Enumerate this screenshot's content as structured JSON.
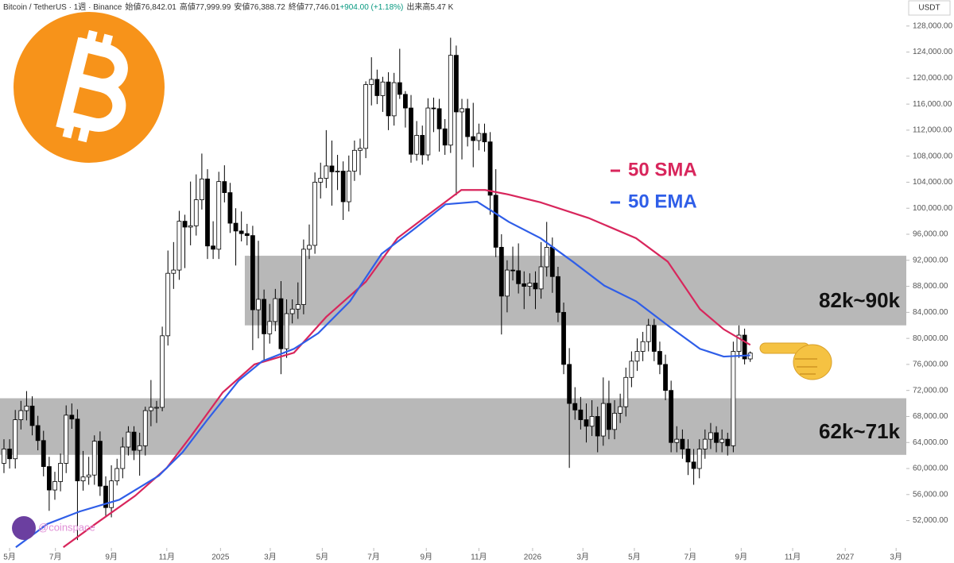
{
  "chart_data": {
    "type": "candlestick",
    "header": {
      "symbol": "Bitcoin / TetherUS · 1週 · Binance",
      "stats": [
        {
          "label": "始値",
          "value": "76,842.01"
        },
        {
          "label": "高値",
          "value": "77,999.99"
        },
        {
          "label": "安値",
          "value": "76,388.72"
        },
        {
          "label": "終値",
          "value": "77,746.01"
        },
        {
          "label": "",
          "value": "+904.00 (+1.18%)"
        },
        {
          "label": "出来高",
          "value": "5.47 K"
        }
      ]
    },
    "currency": "USDT",
    "watermark": "@coinspace",
    "up_color": "#ffffff",
    "down_color": "#000000",
    "ylim": [
      47800,
      132000
    ],
    "yticks": [
      {
        "value": 52000,
        "label": "52,000.00"
      },
      {
        "value": 56000,
        "label": "56,000.00"
      },
      {
        "value": 60000,
        "label": "60,000.00"
      },
      {
        "value": 64000,
        "label": "64,000.00"
      },
      {
        "value": 68000,
        "label": "68,000.00"
      },
      {
        "value": 72000,
        "label": "72,000.00"
      },
      {
        "value": 76000,
        "label": "76,000.00"
      },
      {
        "value": 80000,
        "label": "80,000.00"
      },
      {
        "value": 84000,
        "label": "84,000.00"
      },
      {
        "value": 88000,
        "label": "88,000.00"
      },
      {
        "value": 92000,
        "label": "92,000.00"
      },
      {
        "value": 96000,
        "label": "96,000.00"
      },
      {
        "value": 100000,
        "label": "100,000.00"
      },
      {
        "value": 104000,
        "label": "104,000.00"
      },
      {
        "value": 108000,
        "label": "108,000.00"
      },
      {
        "value": 112000,
        "label": "112,000.00"
      },
      {
        "value": 116000,
        "label": "116,000.00"
      },
      {
        "value": 120000,
        "label": "120,000.00"
      },
      {
        "value": 124000,
        "label": "124,000.00"
      },
      {
        "value": 128000,
        "label": "128,000.00"
      }
    ],
    "xlim": [
      -0.7,
      159.6
    ],
    "xticks": [
      {
        "value": 1.0,
        "label": "5月"
      },
      {
        "value": 9.1,
        "label": "7月"
      },
      {
        "value": 19.0,
        "label": "9月"
      },
      {
        "value": 28.8,
        "label": "11月"
      },
      {
        "value": 38.3,
        "label": "2025"
      },
      {
        "value": 47.1,
        "label": "3月"
      },
      {
        "value": 56.3,
        "label": "5月"
      },
      {
        "value": 65.4,
        "label": "7月"
      },
      {
        "value": 74.7,
        "label": "9月"
      },
      {
        "value": 84.0,
        "label": "11月"
      },
      {
        "value": 93.5,
        "label": "2026"
      },
      {
        "value": 102.4,
        "label": "3月"
      },
      {
        "value": 111.5,
        "label": "5月"
      },
      {
        "value": 121.4,
        "label": "7月"
      },
      {
        "value": 130.4,
        "label": "9月"
      },
      {
        "value": 139.5,
        "label": "11月"
      },
      {
        "value": 148.8,
        "label": "2027"
      },
      {
        "value": 157.8,
        "label": "3月"
      }
    ],
    "zones": [
      {
        "label": "82k~90k",
        "low": 82000,
        "high": 92700,
        "start": 42.6
      },
      {
        "label": "62k~71k",
        "low": 62100,
        "high": 70800,
        "start": -0.7
      }
    ],
    "ohlc": [
      [
        60800,
        64500,
        59300,
        63000
      ],
      [
        63000,
        64500,
        60000,
        61500
      ],
      [
        61500,
        69000,
        60000,
        67500
      ],
      [
        67500,
        70400,
        66000,
        68900
      ],
      [
        68900,
        71900,
        67400,
        69600
      ],
      [
        69600,
        71100,
        65100,
        66600
      ],
      [
        66600,
        68100,
        62800,
        64300
      ],
      [
        64300,
        65800,
        58800,
        60300
      ],
      [
        60300,
        61800,
        53500,
        56700
      ],
      [
        56700,
        59500,
        55200,
        58000
      ],
      [
        58000,
        62300,
        56500,
        60800
      ],
      [
        60800,
        69700,
        59300,
        68200
      ],
      [
        68200,
        70000,
        66100,
        67600
      ],
      [
        67600,
        69100,
        49000,
        58100
      ],
      [
        58100,
        62700,
        56600,
        58700
      ],
      [
        58700,
        61800,
        57500,
        59000
      ],
      [
        59000,
        65100,
        57500,
        64200
      ],
      [
        64200,
        65700,
        55800,
        57300
      ],
      [
        57300,
        58800,
        52500,
        54000
      ],
      [
        54000,
        60500,
        52500,
        58100
      ],
      [
        58100,
        61500,
        57400,
        60000
      ],
      [
        60000,
        64800,
        58500,
        63300
      ],
      [
        63300,
        66500,
        62000,
        65600
      ],
      [
        65600,
        66500,
        61300,
        62800
      ],
      [
        62800,
        65500,
        58900,
        63500
      ],
      [
        63500,
        69500,
        62000,
        68900
      ],
      [
        68900,
        73600,
        66500,
        69400
      ],
      [
        69400,
        70400,
        67000,
        69400
      ],
      [
        69400,
        81800,
        68800,
        80400
      ],
      [
        80400,
        93500,
        78900,
        90000
      ],
      [
        90000,
        94800,
        87600,
        90500
      ],
      [
        90500,
        99600,
        89000,
        98000
      ],
      [
        98000,
        99000,
        90800,
        97100
      ],
      [
        97100,
        104100,
        94300,
        97300
      ],
      [
        97300,
        105200,
        95800,
        101300
      ],
      [
        101300,
        108400,
        99800,
        104500
      ],
      [
        104500,
        106000,
        92200,
        94200
      ],
      [
        94200,
        98000,
        92200,
        93700
      ],
      [
        93700,
        105600,
        92200,
        104100
      ],
      [
        104100,
        106600,
        100900,
        102400
      ],
      [
        102400,
        103900,
        96200,
        97700
      ],
      [
        97700,
        100000,
        91200,
        96500
      ],
      [
        96500,
        99500,
        94900,
        96100
      ],
      [
        96100,
        97600,
        94300,
        95800
      ],
      [
        95800,
        97300,
        78200,
        84400
      ],
      [
        84400,
        95000,
        80000,
        86000
      ],
      [
        86000,
        87500,
        76600,
        80700
      ],
      [
        80700,
        85300,
        79200,
        82600
      ],
      [
        82600,
        87600,
        81100,
        86100
      ],
      [
        86100,
        88800,
        74500,
        78400
      ],
      [
        78400,
        86000,
        77000,
        83800
      ],
      [
        83800,
        86000,
        82300,
        84500
      ],
      [
        84500,
        88600,
        83000,
        85200
      ],
      [
        85200,
        95200,
        83700,
        93700
      ],
      [
        93700,
        97500,
        92200,
        94300
      ],
      [
        94300,
        105500,
        93000,
        104000
      ],
      [
        104000,
        107000,
        101500,
        104600
      ],
      [
        104600,
        112000,
        103100,
        106500
      ],
      [
        106500,
        110400,
        100400,
        105600
      ],
      [
        105600,
        108200,
        102800,
        105700
      ],
      [
        105700,
        107200,
        98200,
        101000
      ],
      [
        101000,
        108100,
        99500,
        105700
      ],
      [
        105700,
        110400,
        104200,
        108900
      ],
      [
        108900,
        110700,
        105100,
        109200
      ],
      [
        109200,
        119500,
        107700,
        119000
      ],
      [
        119000,
        123200,
        115800,
        119800
      ],
      [
        119800,
        121300,
        116000,
        117300
      ],
      [
        117300,
        120200,
        114800,
        119400
      ],
      [
        119400,
        120900,
        112000,
        114200
      ],
      [
        114200,
        120800,
        112700,
        119300
      ],
      [
        119300,
        124500,
        116800,
        117500
      ],
      [
        117500,
        118000,
        112400,
        115400
      ],
      [
        115400,
        117400,
        107000,
        108300
      ],
      [
        108300,
        113400,
        107300,
        111200
      ],
      [
        111200,
        112700,
        106700,
        108200
      ],
      [
        108200,
        116900,
        107300,
        115400
      ],
      [
        115400,
        117000,
        111700,
        115300
      ],
      [
        115300,
        116800,
        108700,
        112200
      ],
      [
        112200,
        113700,
        108200,
        109700
      ],
      [
        109700,
        126200,
        108500,
        123500
      ],
      [
        123500,
        125000,
        102000,
        114800
      ],
      [
        114800,
        116800,
        107500,
        115300
      ],
      [
        115300,
        116800,
        109500,
        111000
      ],
      [
        111000,
        116200,
        106300,
        110400
      ],
      [
        110400,
        113000,
        108900,
        111500
      ],
      [
        111500,
        113000,
        108700,
        110200
      ],
      [
        110200,
        111700,
        99000,
        102000
      ],
      [
        102000,
        106000,
        92500,
        94000
      ],
      [
        94000,
        96000,
        80600,
        86500
      ],
      [
        86500,
        92000,
        84000,
        90500
      ],
      [
        90500,
        94100,
        88900,
        90400
      ],
      [
        90400,
        94600,
        86900,
        88400
      ],
      [
        88400,
        90300,
        84500,
        88000
      ],
      [
        88000,
        90000,
        86500,
        88500
      ],
      [
        88500,
        90300,
        84500,
        87600
      ],
      [
        87600,
        94800,
        86100,
        91000
      ],
      [
        91000,
        97900,
        89500,
        94000
      ],
      [
        94000,
        95500,
        87000,
        89500
      ],
      [
        89500,
        91000,
        82500,
        84000
      ],
      [
        84000,
        85500,
        74500,
        76000
      ],
      [
        76000,
        78500,
        60100,
        70000
      ],
      [
        70000,
        72500,
        67500,
        69000
      ],
      [
        69000,
        71000,
        66000,
        67500
      ],
      [
        67500,
        70000,
        64000,
        66500
      ],
      [
        66500,
        70500,
        65000,
        68000
      ],
      [
        68000,
        69500,
        62500,
        65000
      ],
      [
        65000,
        74000,
        63500,
        70000
      ],
      [
        70000,
        73500,
        64500,
        66000
      ],
      [
        66000,
        70500,
        64500,
        68500
      ],
      [
        68500,
        71500,
        67000,
        69500
      ],
      [
        69500,
        75500,
        68000,
        74000
      ],
      [
        74000,
        78000,
        72500,
        76500
      ],
      [
        76500,
        80000,
        75000,
        78000
      ],
      [
        78000,
        81000,
        76500,
        79500
      ],
      [
        79500,
        83000,
        78000,
        82000
      ],
      [
        82000,
        83000,
        76500,
        78000
      ],
      [
        78000,
        79500,
        74500,
        76000
      ],
      [
        76000,
        77500,
        70500,
        72000
      ],
      [
        72000,
        73500,
        62500,
        64000
      ],
      [
        64000,
        66500,
        62500,
        64500
      ],
      [
        64500,
        66000,
        61500,
        63000
      ],
      [
        63000,
        64500,
        59000,
        61000
      ],
      [
        61000,
        63000,
        57500,
        60000
      ],
      [
        60000,
        64500,
        58500,
        63000
      ],
      [
        63000,
        66000,
        61500,
        64500
      ],
      [
        64500,
        67000,
        63000,
        65500
      ],
      [
        65500,
        66500,
        62500,
        64000
      ],
      [
        64000,
        66000,
        62500,
        64500
      ],
      [
        64500,
        65500,
        62000,
        63500
      ],
      [
        63500,
        79500,
        62500,
        78000
      ],
      [
        78000,
        82000,
        77000,
        80500
      ],
      [
        80500,
        81500,
        76000,
        76842.01
      ],
      [
        76842.01,
        77999.99,
        76388.72,
        77746.01
      ]
    ],
    "lines": [
      {
        "name": "50 SMA",
        "color": "#d8265c",
        "x": [
          10.5,
          16.2,
          23.2,
          28.8,
          33.1,
          38.7,
          44.3,
          51.3,
          57,
          64,
          69.6,
          75.2,
          80.9,
          85.1,
          89.3,
          94.9,
          103.4,
          111.8,
          117.4,
          123.1,
          127.3,
          132
        ],
        "values": [
          47900,
          51500,
          55800,
          60100,
          65000,
          71700,
          76000,
          77800,
          83300,
          88700,
          95400,
          99100,
          102800,
          102800,
          102100,
          100900,
          98500,
          95400,
          91800,
          84500,
          81400,
          79000
        ]
      },
      {
        "name": "50 EMA",
        "color": "#2f5ee8",
        "x": [
          2.1,
          7.7,
          13.4,
          20.4,
          27.4,
          31.6,
          35.9,
          41.5,
          45.7,
          51.3,
          55.6,
          61.2,
          66.8,
          72.4,
          78.1,
          83.7,
          89.3,
          94.9,
          100.6,
          106.2,
          111.8,
          117.4,
          123.1,
          127.3,
          132
        ],
        "values": [
          47900,
          51500,
          53400,
          55200,
          58900,
          62500,
          67400,
          73500,
          76500,
          78400,
          80800,
          85700,
          93000,
          96700,
          100600,
          101000,
          97900,
          95400,
          91800,
          88100,
          85700,
          82000,
          78400,
          77200,
          77400
        ]
      }
    ]
  }
}
